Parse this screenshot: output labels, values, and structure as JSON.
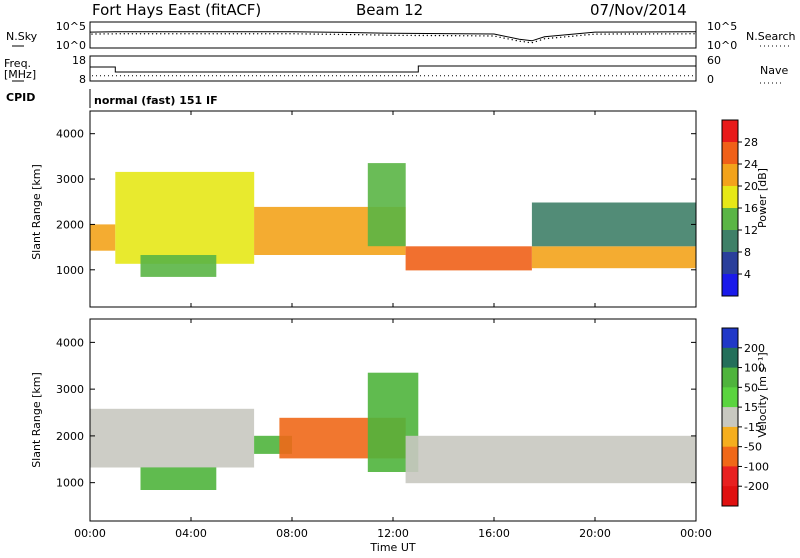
{
  "header": {
    "station": "Fort Hays East (fitACF)",
    "beam": "Beam 12",
    "date": "07/Nov/2014"
  },
  "noise_panel": {
    "left_label": "N.Sky",
    "right_label": "N.Search",
    "left_ticks": [
      "10^5",
      "10^0"
    ],
    "right_ticks": [
      "10^5",
      "10^0"
    ]
  },
  "freq_panel": {
    "left_label_line1": "Freq.",
    "left_label_line2": "[MHz]",
    "right_label": "Nave",
    "left_ticks": [
      "18",
      "8"
    ],
    "right_ticks": [
      "60",
      "0"
    ]
  },
  "cpid": {
    "label": "CPID",
    "text": "normal (fast) 151 IF"
  },
  "power_panel": {
    "ylabel": "Slant Range [km]",
    "colorbar_label": "Power [dB]",
    "colorbar_ticks": [
      "28",
      "24",
      "20",
      "16",
      "12",
      "8",
      "4"
    ],
    "colorbar_colors": [
      "#e81a1a",
      "#f06018",
      "#f3a31b",
      "#e6e817",
      "#5ab545",
      "#3f8068",
      "#2a3f9b",
      "#1a1aea"
    ]
  },
  "velocity_panel": {
    "ylabel": "Slant Range [km]",
    "colorbar_label": "Velocity [m s⁻¹]",
    "colorbar_ticks": [
      "200",
      "100",
      "50",
      "15",
      "-15",
      "-50",
      "-100",
      "-200"
    ],
    "colorbar_colors": [
      "#2038c8",
      "#246f5a",
      "#4fb43c",
      "#5ad43f",
      "#c8c8c0",
      "#f5ae1e",
      "#f06818",
      "#e82020",
      "#e01010"
    ]
  },
  "x_axis": {
    "label": "Time UT",
    "ticks": [
      "00:00",
      "04:00",
      "08:00",
      "12:00",
      "16:00",
      "20:00",
      "00:00"
    ]
  },
  "chart_data": [
    {
      "type": "line",
      "title": "Fort Hays East (fitACF) Beam 12 07/Nov/2014",
      "name": "noise",
      "xlabel": "",
      "ylabel": "N.Sky",
      "yscale": "log",
      "ylim": [
        1,
        100000
      ],
      "x": [
        "00:00",
        "01:00",
        "04:00",
        "08:00",
        "10:00",
        "12:00",
        "16:00",
        "17:00",
        "17:30",
        "18:00",
        "20:00",
        "24:00"
      ],
      "series": [
        {
          "name": "N.Sky",
          "values": [
            3000,
            3500,
            3500,
            3500,
            2500,
            1500,
            1000,
            50,
            20,
            200,
            3000,
            3500
          ]
        },
        {
          "name": "N.Search",
          "values": [
            3000,
            3500,
            3500,
            3500,
            2500,
            1500,
            1000,
            50,
            20,
            200,
            3000,
            3500
          ]
        }
      ]
    },
    {
      "type": "line",
      "name": "frequency",
      "xlabel": "",
      "ylabel": "Freq. [MHz]",
      "ylim": [
        8,
        18
      ],
      "right_ylabel": "Nave",
      "right_ylim": [
        0,
        60
      ],
      "x": [
        "00:00",
        "01:00",
        "01:00",
        "13:00",
        "13:00",
        "24:00"
      ],
      "series": [
        {
          "name": "Freq.",
          "values": [
            14,
            14,
            11.5,
            11.5,
            14.5,
            14.5
          ]
        },
        {
          "name": "Nave",
          "values": [
            10,
            10,
            10,
            10,
            10,
            10
          ]
        }
      ]
    },
    {
      "type": "heatmap",
      "name": "power",
      "xlabel": "Time UT",
      "ylabel": "Slant Range [km]",
      "ylim": [
        180,
        4500
      ],
      "colorbar": "Power [dB]",
      "crange": [
        0,
        32
      ],
      "features": [
        {
          "t_start": "00:00",
          "t_end": "01:00",
          "range_km": [
            1400,
            2000
          ],
          "power_db": 22
        },
        {
          "t_start": "01:00",
          "t_end": "06:30",
          "range_km": [
            1100,
            3200
          ],
          "power_db": 18
        },
        {
          "t_start": "02:00",
          "t_end": "05:00",
          "range_km": [
            800,
            1300
          ],
          "power_db": 14
        },
        {
          "t_start": "06:30",
          "t_end": "12:30",
          "range_km": [
            1300,
            2400
          ],
          "power_db": 24
        },
        {
          "t_start": "11:00",
          "t_end": "12:30",
          "range_km": [
            1500,
            3400
          ],
          "power_db": 16
        },
        {
          "t_start": "12:30",
          "t_end": "17:30",
          "range_km": [
            950,
            1500
          ],
          "power_db": 26
        },
        {
          "t_start": "17:30",
          "t_end": "24:00",
          "range_km": [
            1000,
            1500
          ],
          "power_db": 24
        },
        {
          "t_start": "17:30",
          "t_end": "24:00",
          "range_km": [
            1500,
            2500
          ],
          "power_db": 10
        }
      ]
    },
    {
      "type": "heatmap",
      "name": "velocity",
      "xlabel": "Time UT",
      "ylabel": "Slant Range [km]",
      "ylim": [
        180,
        4500
      ],
      "colorbar": "Velocity [m s⁻¹]",
      "crange": [
        -200,
        200
      ],
      "features": [
        {
          "t_start": "00:00",
          "t_end": "06:30",
          "range_km": [
            1300,
            2600
          ],
          "velocity": 0
        },
        {
          "t_start": "02:00",
          "t_end": "05:00",
          "range_km": [
            800,
            1300
          ],
          "velocity": 60
        },
        {
          "t_start": "06:30",
          "t_end": "08:00",
          "range_km": [
            1600,
            2000
          ],
          "velocity": 40
        },
        {
          "t_start": "07:30",
          "t_end": "12:30",
          "range_km": [
            1500,
            2400
          ],
          "velocity": -60
        },
        {
          "t_start": "11:00",
          "t_end": "13:00",
          "range_km": [
            1200,
            3400
          ],
          "velocity": 40
        },
        {
          "t_start": "12:30",
          "t_end": "24:00",
          "range_km": [
            950,
            2000
          ],
          "velocity": 0
        }
      ]
    }
  ]
}
